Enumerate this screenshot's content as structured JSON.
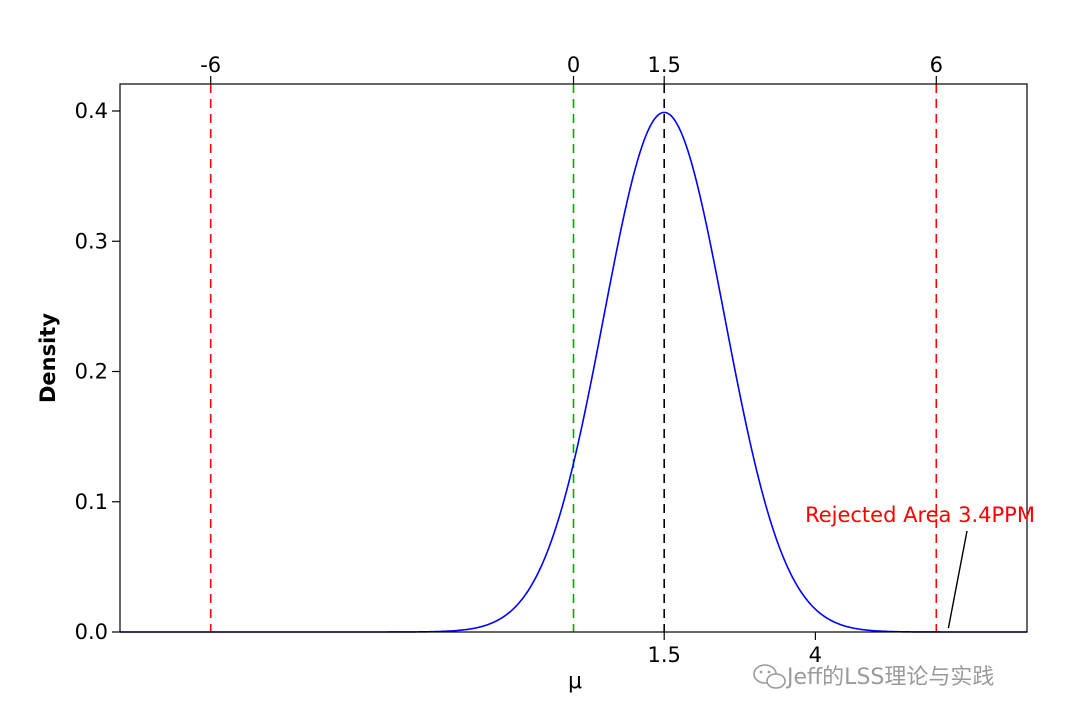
{
  "chart_data": {
    "type": "line",
    "title": "",
    "xlabel": "μ",
    "ylabel": "Density",
    "xlim": [
      -7.5,
      7.5
    ],
    "ylim": [
      0,
      0.4
    ],
    "y_ticks": [
      "0.0",
      "0.1",
      "0.2",
      "0.3",
      "0.4"
    ],
    "y_tick_values": [
      0,
      0.1,
      0.2,
      0.3,
      0.4
    ],
    "top_ticks": [
      "-6",
      "0",
      "1.5",
      "6"
    ],
    "top_tick_values": [
      -6,
      0,
      1.5,
      6
    ],
    "bottom_ticks": [
      "1.5",
      "4"
    ],
    "bottom_tick_values": [
      1.5,
      4
    ],
    "grid": false,
    "series": [
      {
        "distribution": "normal",
        "mean": 1.5,
        "sd": 1,
        "x": [
          -4.5,
          -4,
          -3.5,
          -3,
          -2.5,
          -2,
          -1.5,
          -1,
          -0.5,
          0,
          0.5,
          1,
          1.5,
          2,
          2.5,
          3,
          3.5,
          4,
          4.5,
          5,
          5.5,
          6,
          6.5,
          7,
          7.5
        ],
        "y": [
          0.0,
          0.0,
          0.0,
          0.0,
          0.0001,
          0.0009,
          0.0044,
          0.0175,
          0.054,
          0.1295,
          0.242,
          0.3521,
          0.3989,
          0.3521,
          0.242,
          0.1295,
          0.054,
          0.0175,
          0.0044,
          0.0009,
          0.0001,
          0.0,
          0.0,
          0.0,
          0.0
        ],
        "color": "#0000ff"
      }
    ],
    "reference_lines": [
      {
        "x": -6,
        "color": "#ff0000",
        "style": "dashed"
      },
      {
        "x": 0,
        "color": "#00aa00",
        "style": "dashed"
      },
      {
        "x": 1.5,
        "color": "#000000",
        "style": "dashed"
      },
      {
        "x": 6,
        "color": "#ff0000",
        "style": "dashed"
      }
    ],
    "shaded_region": {
      "from": 6,
      "to": 7.5,
      "color": "#ff0000"
    },
    "annotation": {
      "text": "Rejected Area 3.4PPM",
      "color": "#ff0000",
      "x": 6.2,
      "y": 0.003
    }
  },
  "watermark": {
    "text": "Jeff的LSS理论与实践",
    "icon": "wechat-icon"
  }
}
